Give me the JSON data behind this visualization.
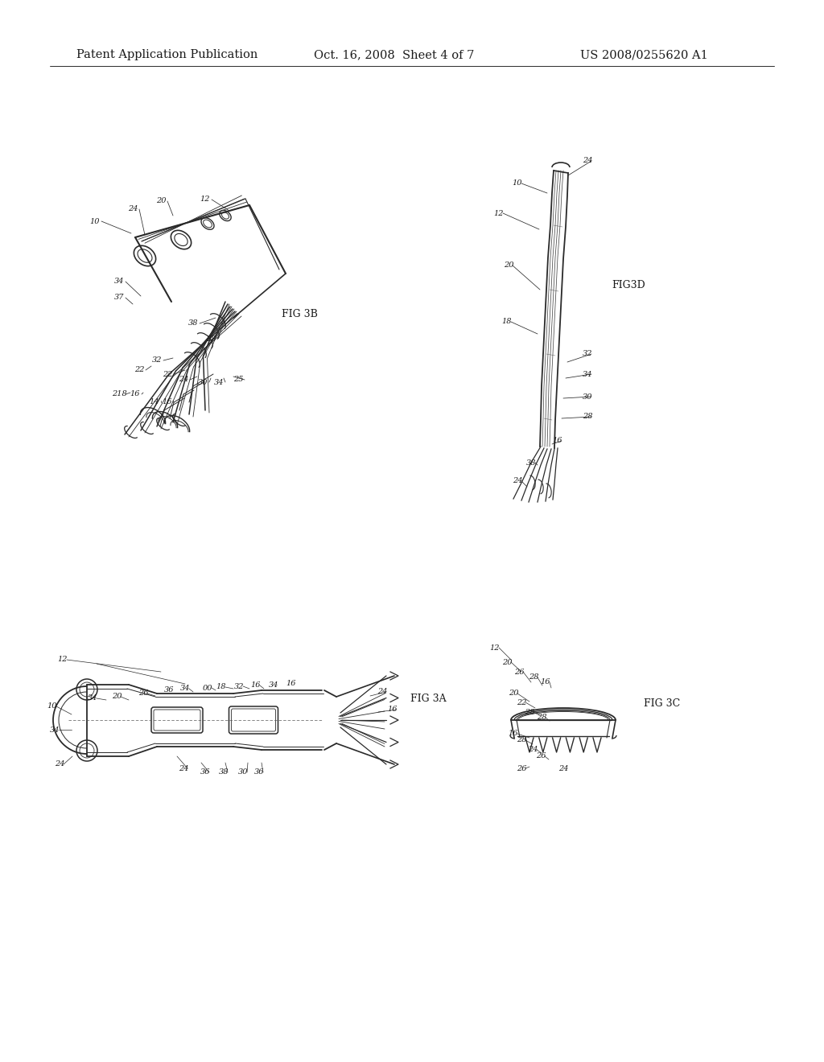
{
  "background_color": "#f5f5f0",
  "page_color": "#ffffff",
  "header_left": "Patent Application Publication",
  "header_center": "Oct. 16, 2008  Sheet 4 of 7",
  "header_right": "US 2008/0255620 A1",
  "header_fontsize": 10.5,
  "fig3b_label": "FIG 3B",
  "fig3a_label": "FIG 3A",
  "fig3c_label": "FIG 3C",
  "fig3d_label": "FIG3D",
  "line_color": "#2a2a2a",
  "text_color": "#1a1a1a",
  "scan_noise": true
}
